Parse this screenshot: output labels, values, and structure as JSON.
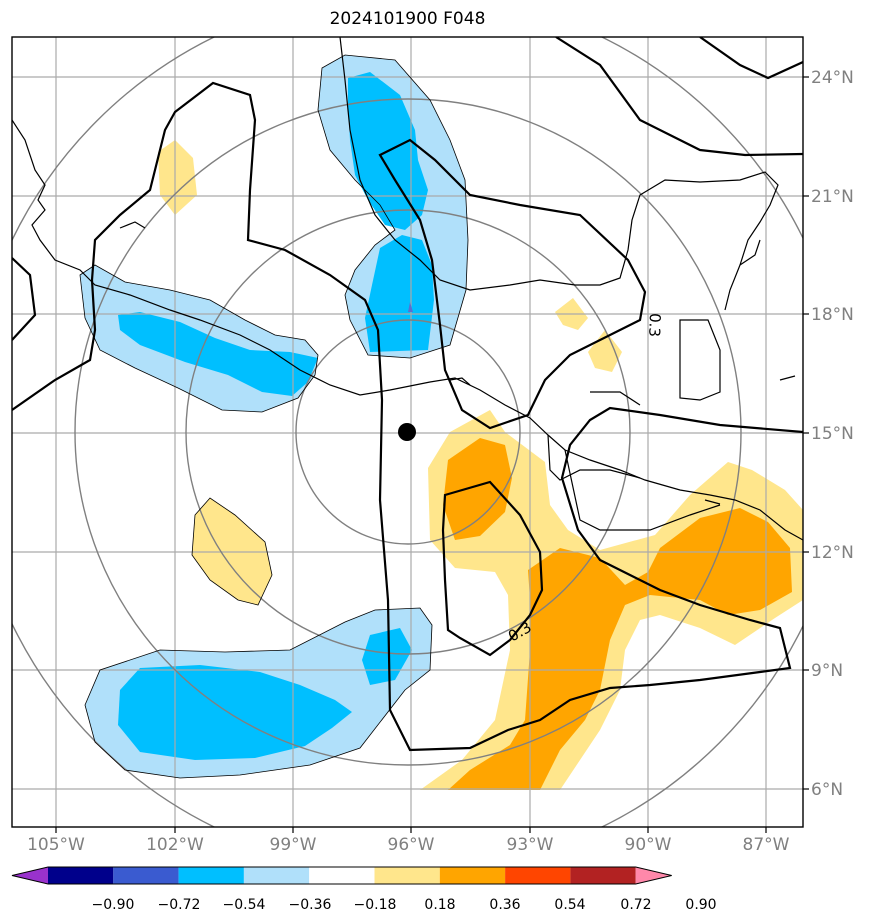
{
  "title": "2024101900 F048",
  "map": {
    "lon_labels": [
      "105°W",
      "102°W",
      "99°W",
      "96°W",
      "93°W",
      "90°W",
      "87°W"
    ],
    "lat_labels": [
      "24°N",
      "21°N",
      "18°N",
      "15°N",
      "12°N",
      "9°N",
      "6°N"
    ],
    "contour_labels": [
      "0.3",
      "0.3"
    ],
    "center_marker": {
      "lon": -96,
      "lat": 15
    }
  },
  "colorbar": {
    "tick_labels": [
      "−0.90",
      "−0.72",
      "−0.54",
      "−0.36",
      "−0.18",
      "0.18",
      "0.36",
      "0.54",
      "0.72",
      "0.90"
    ],
    "colors": [
      "#9932cc",
      "#00008b",
      "#3a5bd0",
      "#00bfff",
      "#b0e0fa",
      "#ffffff",
      "#ffe68c",
      "#ffa500",
      "#ff4500",
      "#b22222",
      "#ff88aa"
    ]
  }
}
